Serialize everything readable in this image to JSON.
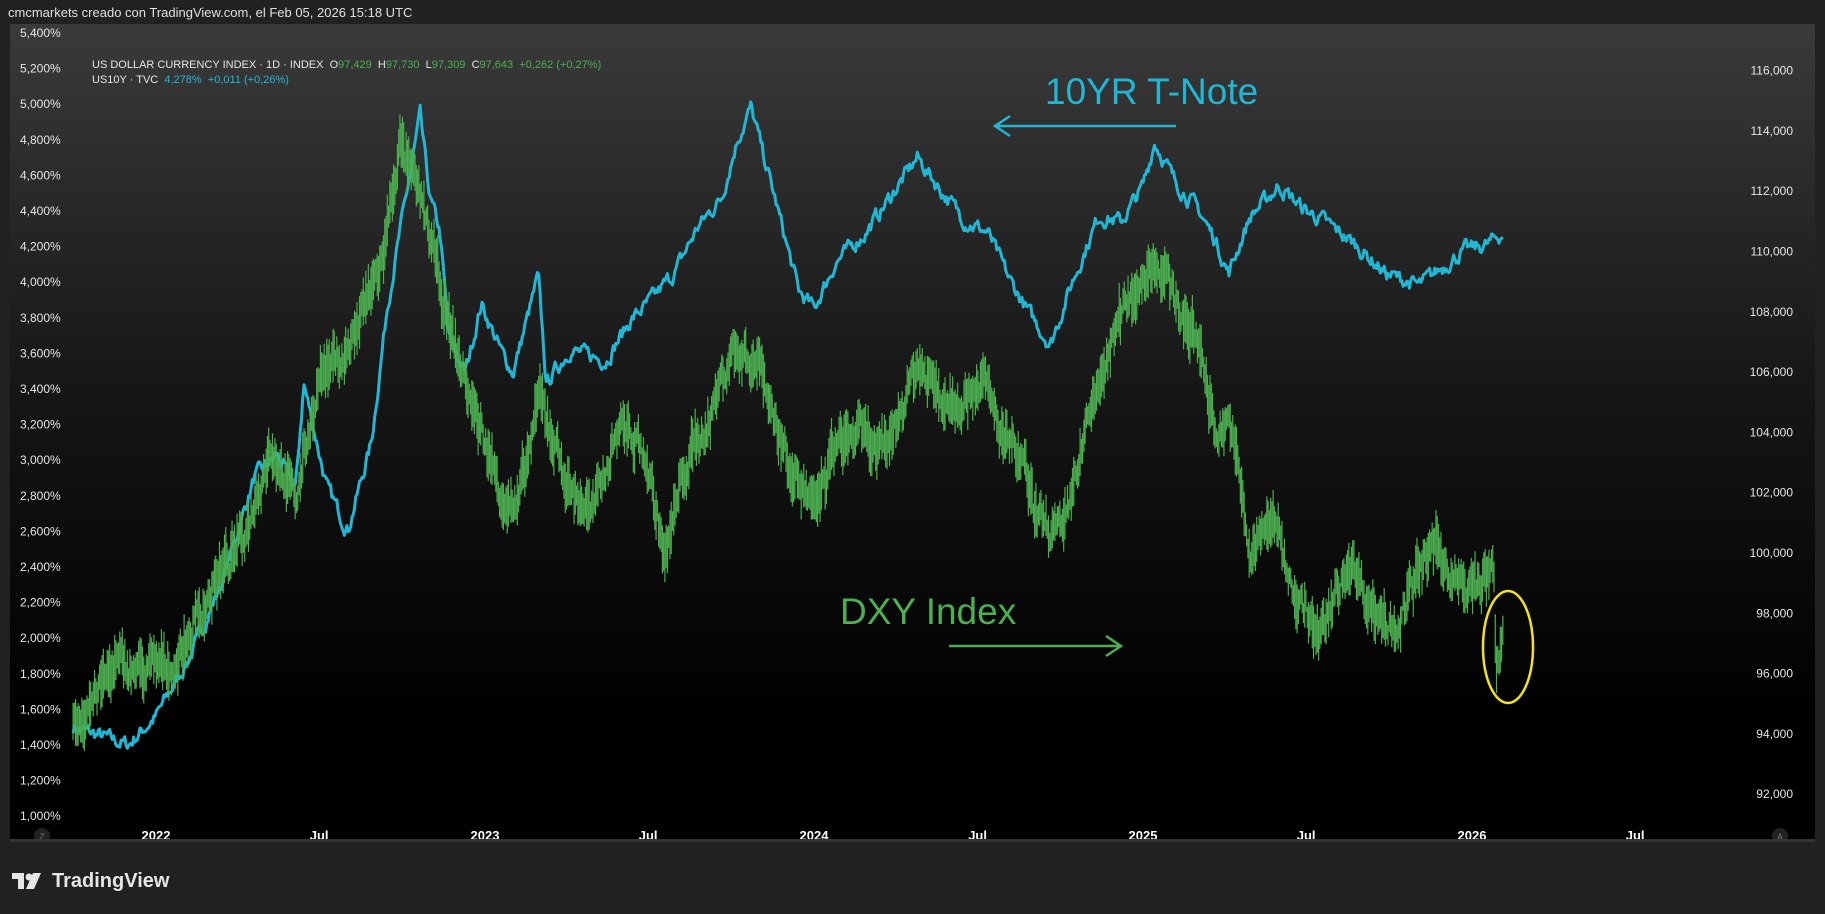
{
  "header": {
    "attribution": "cmcmarkets creado con TradingView.com, el Feb 05, 2026 15:18 UTC"
  },
  "legend": {
    "dxy": {
      "title": "US DOLLAR CURRENCY INDEX · 1D · INDEX",
      "o_label": "O",
      "o": "97,429",
      "h_label": "H",
      "h": "97,730",
      "l_label": "L",
      "l": "97,309",
      "c_label": "C",
      "c": "97,643",
      "change": "+0,262 (+0,27%)"
    },
    "us10y": {
      "title": "US10Y · TVC",
      "last": "4,278%",
      "change": "+0,011 (+0,26%)"
    }
  },
  "footer": {
    "brand": "TradingView"
  },
  "colors": {
    "us10y": "#21b7d4",
    "dxy": "#4caf50",
    "highlight": "#f2e31b",
    "background": "#000000"
  },
  "chart_data": {
    "type": "line",
    "x_axis": {
      "ticks": [
        "2022",
        "Jul",
        "2023",
        "Jul",
        "2024",
        "Jul",
        "2025",
        "Jul",
        "2026",
        "Jul"
      ],
      "tick_dates": [
        "2022-01-01",
        "2022-07-01",
        "2023-01-01",
        "2023-07-01",
        "2024-01-01",
        "2024-07-01",
        "2025-01-01",
        "2025-07-01",
        "2026-01-01",
        "2026-07-01"
      ],
      "left_button": "Z",
      "right_button": "A"
    },
    "left_axis": {
      "ylim": [
        1.0,
        5.4
      ],
      "ticks": [
        "5,400%",
        "5,200%",
        "5,000%",
        "4,800%",
        "4,600%",
        "4,400%",
        "4,200%",
        "4,000%",
        "3,800%",
        "3,600%",
        "3,400%",
        "3,200%",
        "3,000%",
        "2,800%",
        "2,600%",
        "2,400%",
        "2,200%",
        "2,000%",
        "1,800%",
        "1,600%",
        "1,400%",
        "1,200%",
        "1,000%"
      ]
    },
    "right_axis": {
      "ylim": [
        91,
        116.5
      ],
      "ticks": [
        "116,000",
        "114,000",
        "112,000",
        "110,000",
        "108,000",
        "106,000",
        "104,000",
        "102,000",
        "100,000",
        "98,000",
        "96,000",
        "94,000",
        "92,000"
      ]
    },
    "annotations": [
      {
        "text": "10YR T-Note",
        "arrow": "left",
        "color": "#21b7d4"
      },
      {
        "text": "DXY Index",
        "arrow": "right",
        "color": "#4caf50"
      }
    ],
    "series": [
      {
        "name": "US10Y",
        "axis": "left",
        "style": "line",
        "points": [
          [
            "2021-10-01",
            1.5
          ],
          [
            "2021-12-01",
            1.4
          ],
          [
            "2022-01-01",
            1.56
          ],
          [
            "2022-02-10",
            1.92
          ],
          [
            "2022-03-15",
            2.31
          ],
          [
            "2022-04-20",
            2.9
          ],
          [
            "2022-05-15",
            3.03
          ],
          [
            "2022-06-05",
            2.84
          ],
          [
            "2022-06-14",
            3.43
          ],
          [
            "2022-07-10",
            2.84
          ],
          [
            "2022-08-02",
            2.61
          ],
          [
            "2022-08-28",
            3.1
          ],
          [
            "2022-09-15",
            3.88
          ],
          [
            "2022-10-21",
            4.93
          ],
          [
            "2022-11-01",
            4.47
          ],
          [
            "2022-11-12",
            4.28
          ],
          [
            "2022-11-22",
            3.69
          ],
          [
            "2022-12-10",
            3.49
          ],
          [
            "2022-12-28",
            3.88
          ],
          [
            "2023-01-18",
            3.62
          ],
          [
            "2023-02-01",
            3.49
          ],
          [
            "2023-03-01",
            4.03
          ],
          [
            "2023-03-10",
            3.43
          ],
          [
            "2023-04-05",
            3.62
          ],
          [
            "2023-05-15",
            3.56
          ],
          [
            "2023-06-12",
            3.79
          ],
          [
            "2023-07-01",
            3.88
          ],
          [
            "2023-07-30",
            4.05
          ],
          [
            "2023-08-25",
            4.31
          ],
          [
            "2023-09-20",
            4.47
          ],
          [
            "2023-10-08",
            4.8
          ],
          [
            "2023-10-23",
            4.98
          ],
          [
            "2023-11-15",
            4.54
          ],
          [
            "2023-12-15",
            3.95
          ],
          [
            "2024-01-01",
            3.85
          ],
          [
            "2024-01-25",
            4.11
          ],
          [
            "2024-02-28",
            4.28
          ],
          [
            "2024-04-25",
            4.7
          ],
          [
            "2024-05-22",
            4.51
          ],
          [
            "2024-06-18",
            4.34
          ],
          [
            "2024-07-12",
            4.28
          ],
          [
            "2024-08-06",
            4.01
          ],
          [
            "2024-08-28",
            3.82
          ],
          [
            "2024-09-20",
            3.65
          ],
          [
            "2024-10-15",
            4.01
          ],
          [
            "2024-11-13",
            4.37
          ],
          [
            "2024-12-08",
            4.34
          ],
          [
            "2025-01-01",
            4.54
          ],
          [
            "2025-01-14",
            4.79
          ],
          [
            "2025-02-05",
            4.57
          ],
          [
            "2025-03-03",
            4.41
          ],
          [
            "2025-03-22",
            4.24
          ],
          [
            "2025-04-06",
            4.05
          ],
          [
            "2025-04-30",
            4.37
          ],
          [
            "2025-06-01",
            4.54
          ],
          [
            "2025-06-28",
            4.41
          ],
          [
            "2025-07-22",
            4.34
          ],
          [
            "2025-08-25",
            4.21
          ],
          [
            "2025-09-27",
            4.05
          ],
          [
            "2025-11-03",
            3.98
          ],
          [
            "2025-11-28",
            4.08
          ],
          [
            "2025-12-24",
            4.18
          ],
          [
            "2026-01-18",
            4.21
          ],
          [
            "2026-02-05",
            4.28
          ]
        ]
      },
      {
        "name": "DXY",
        "axis": "right",
        "style": "bars",
        "points": [
          [
            "2021-10-01",
            94.2
          ],
          [
            "2021-11-17",
            96.3
          ],
          [
            "2021-12-12",
            96.1
          ],
          [
            "2022-01-22",
            96.3
          ],
          [
            "2022-03-07",
            99.0
          ],
          [
            "2022-04-08",
            100.5
          ],
          [
            "2022-05-08",
            103.6
          ],
          [
            "2022-06-05",
            101.7
          ],
          [
            "2022-07-01",
            105.9
          ],
          [
            "2022-08-02",
            106.7
          ],
          [
            "2022-09-10",
            109.8
          ],
          [
            "2022-09-28",
            113.6
          ],
          [
            "2022-10-26",
            111.3
          ],
          [
            "2022-11-22",
            107.5
          ],
          [
            "2022-12-15",
            105.2
          ],
          [
            "2023-01-18",
            102.1
          ],
          [
            "2023-02-05",
            101.3
          ],
          [
            "2023-03-03",
            105.2
          ],
          [
            "2023-04-05",
            102.1
          ],
          [
            "2023-05-01",
            101.3
          ],
          [
            "2023-05-30",
            104.4
          ],
          [
            "2023-06-28",
            103.2
          ],
          [
            "2023-07-20",
            99.8
          ],
          [
            "2023-08-10",
            102.8
          ],
          [
            "2023-09-06",
            104.4
          ],
          [
            "2023-10-01",
            106.7
          ],
          [
            "2023-11-03",
            106.3
          ],
          [
            "2023-11-22",
            104.0
          ],
          [
            "2024-01-01",
            101.3
          ],
          [
            "2024-01-25",
            103.6
          ],
          [
            "2024-02-20",
            104.0
          ],
          [
            "2024-03-18",
            103.2
          ],
          [
            "2024-04-25",
            106.3
          ],
          [
            "2024-05-22",
            105.2
          ],
          [
            "2024-06-18",
            105.2
          ],
          [
            "2024-07-05",
            105.9
          ],
          [
            "2024-07-26",
            104.0
          ],
          [
            "2024-08-22",
            102.8
          ],
          [
            "2024-09-01",
            101.3
          ],
          [
            "2024-10-04",
            100.5
          ],
          [
            "2024-10-22",
            103.2
          ],
          [
            "2024-11-16",
            105.9
          ],
          [
            "2024-12-12",
            108.2
          ],
          [
            "2025-01-14",
            109.8
          ],
          [
            "2025-02-09",
            108.2
          ],
          [
            "2025-03-07",
            106.7
          ],
          [
            "2025-03-22",
            104.0
          ],
          [
            "2025-04-08",
            104.4
          ],
          [
            "2025-04-30",
            99.8
          ],
          [
            "2025-05-25",
            101.3
          ],
          [
            "2025-06-14",
            99.0
          ],
          [
            "2025-07-16",
            97.1
          ],
          [
            "2025-08-18",
            99.8
          ],
          [
            "2025-09-12",
            98.2
          ],
          [
            "2025-10-08",
            97.5
          ],
          [
            "2025-11-03",
            99.4
          ],
          [
            "2025-11-22",
            100.2
          ],
          [
            "2025-12-24",
            98.6
          ],
          [
            "2026-01-25",
            99.4
          ],
          [
            "2026-01-28",
            95.9
          ],
          [
            "2026-02-05",
            97.6
          ]
        ]
      }
    ]
  }
}
